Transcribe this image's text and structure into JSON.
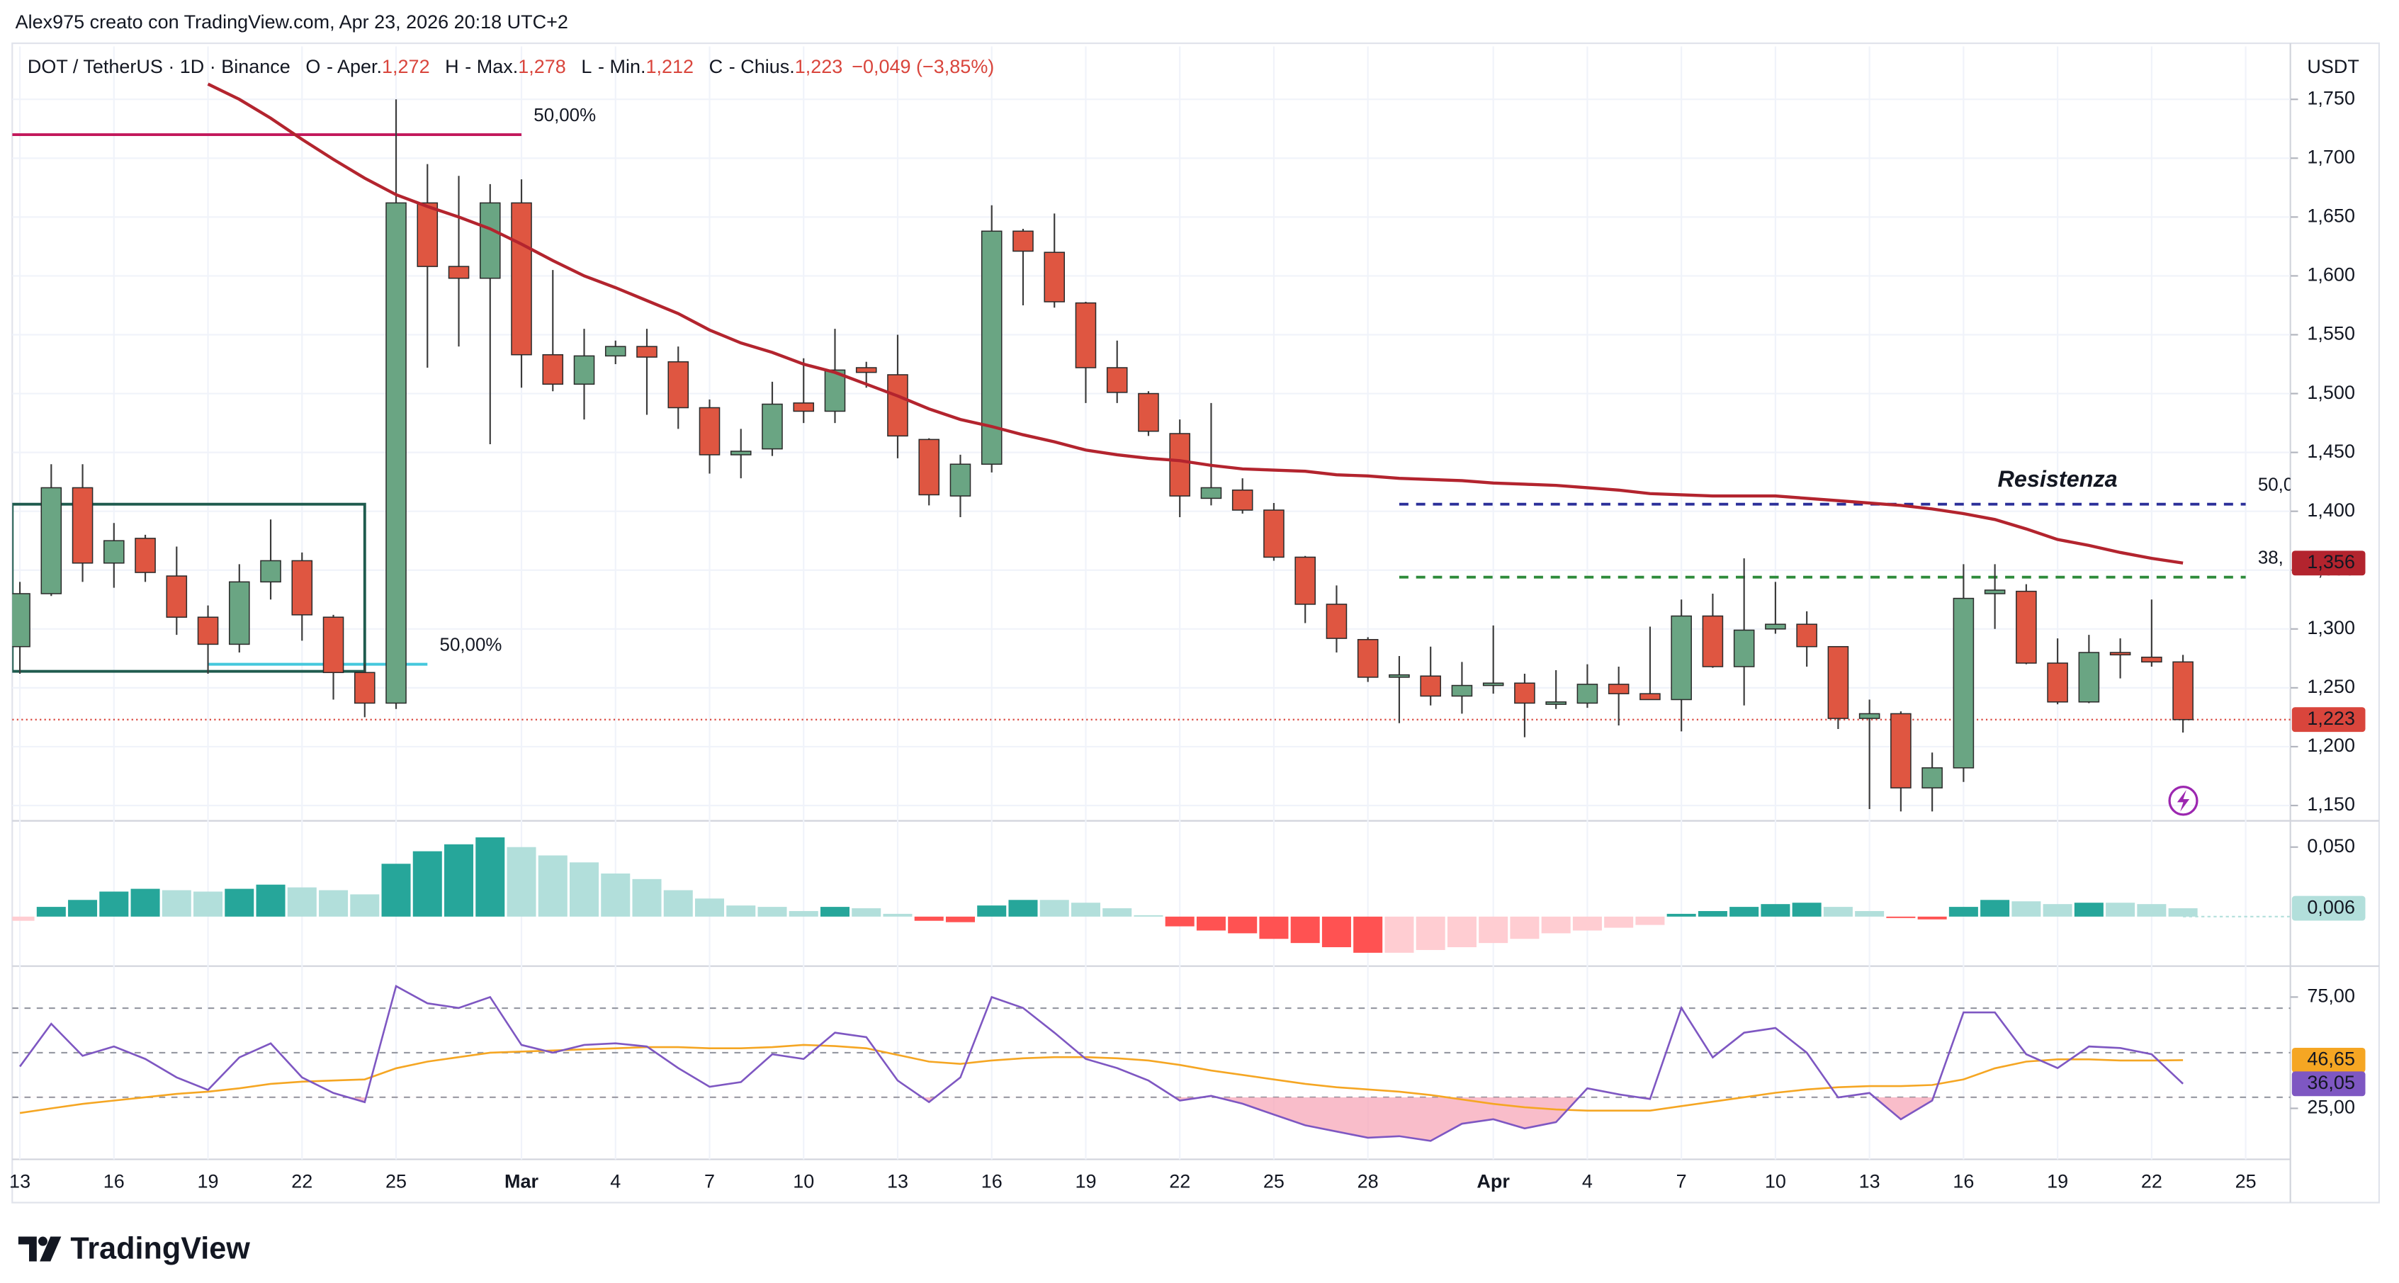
{
  "header": {
    "attribution": "Alex975 creato con TradingView.com, Apr 23, 2026 20:18 UTC+2",
    "brand": "TradingView"
  },
  "chart_data": [
    {
      "type": "candlestick",
      "title": "DOT / TetherUS · 1D · Binance",
      "ohlc_legend": [
        {
          "key": "O",
          "label": "- Aper.",
          "value": "1,272"
        },
        {
          "key": "H",
          "label": "- Max.",
          "value": "1,278"
        },
        {
          "key": "L",
          "label": "- Min.",
          "value": "1,212"
        },
        {
          "key": "C",
          "label": "- Chius.",
          "value": "1,223"
        }
      ],
      "change": "−0,049 (−3,85%)",
      "unit": "USDT",
      "categories": [
        "13",
        null,
        null,
        "16",
        null,
        null,
        "19",
        null,
        null,
        "22",
        null,
        null,
        "25",
        null,
        null,
        null,
        "Mar",
        null,
        null,
        "4",
        null,
        null,
        "7",
        null,
        null,
        "10",
        null,
        null,
        "13",
        null,
        null,
        "16",
        null,
        null,
        "19",
        null,
        null,
        "22",
        null,
        null,
        "25",
        null,
        null,
        "28",
        null,
        null,
        null,
        "Apr",
        null,
        null,
        "4",
        null,
        null,
        "7",
        null,
        null,
        "10",
        null,
        null,
        "13",
        null,
        null,
        "16",
        null,
        null,
        "19",
        null,
        null,
        "22",
        null,
        null,
        "25"
      ],
      "open": [
        1.285,
        1.33,
        1.42,
        1.356,
        1.377,
        1.345,
        1.31,
        1.287,
        1.34,
        1.358,
        1.31,
        1.263,
        1.237,
        1.662,
        1.608,
        1.598,
        1.662,
        1.533,
        1.508,
        1.532,
        1.54,
        1.527,
        1.488,
        1.448,
        1.453,
        1.492,
        1.485,
        1.522,
        1.516,
        1.461,
        1.413,
        1.44,
        1.638,
        1.62,
        1.577,
        1.522,
        1.5,
        1.466,
        1.411,
        1.418,
        1.401,
        1.361,
        1.321,
        1.291,
        1.259,
        1.26,
        1.243,
        1.252,
        1.254,
        1.236,
        1.237,
        1.253,
        1.245,
        1.24,
        1.311,
        1.268,
        1.3,
        1.304,
        1.285,
        1.224,
        1.228,
        1.165,
        1.182,
        1.33,
        1.332,
        1.271,
        1.238,
        1.28,
        1.276,
        1.272,
        null,
        null
      ],
      "high": [
        1.34,
        1.44,
        1.44,
        1.39,
        1.38,
        1.37,
        1.32,
        1.355,
        1.393,
        1.365,
        1.312,
        1.27,
        1.75,
        1.695,
        1.685,
        1.678,
        1.682,
        1.605,
        1.555,
        1.545,
        1.555,
        1.54,
        1.495,
        1.47,
        1.51,
        1.53,
        1.555,
        1.527,
        1.55,
        1.462,
        1.448,
        1.66,
        1.64,
        1.653,
        1.578,
        1.545,
        1.502,
        1.478,
        1.492,
        1.428,
        1.407,
        1.362,
        1.337,
        1.293,
        1.277,
        1.285,
        1.272,
        1.303,
        1.262,
        1.265,
        1.27,
        1.268,
        1.302,
        1.325,
        1.33,
        1.36,
        1.34,
        1.315,
        1.285,
        1.24,
        1.23,
        1.195,
        1.355,
        1.355,
        1.338,
        1.292,
        1.295,
        1.292,
        1.325,
        1.278,
        null,
        null
      ],
      "low": [
        1.262,
        1.328,
        1.34,
        1.335,
        1.34,
        1.295,
        1.262,
        1.28,
        1.325,
        1.29,
        1.24,
        1.225,
        1.232,
        1.522,
        1.54,
        1.457,
        1.505,
        1.502,
        1.478,
        1.525,
        1.482,
        1.47,
        1.432,
        1.428,
        1.447,
        1.475,
        1.475,
        1.505,
        1.445,
        1.405,
        1.395,
        1.433,
        1.575,
        1.573,
        1.492,
        1.492,
        1.464,
        1.395,
        1.405,
        1.398,
        1.358,
        1.305,
        1.28,
        1.255,
        1.22,
        1.235,
        1.228,
        1.245,
        1.208,
        1.232,
        1.233,
        1.218,
        1.24,
        1.213,
        1.267,
        1.235,
        1.296,
        1.268,
        1.215,
        1.147,
        1.145,
        1.145,
        1.17,
        1.3,
        1.27,
        1.236,
        1.237,
        1.258,
        1.268,
        1.212,
        null,
        null
      ],
      "close": [
        1.33,
        1.42,
        1.356,
        1.375,
        1.348,
        1.31,
        1.287,
        1.34,
        1.358,
        1.312,
        1.263,
        1.237,
        1.662,
        1.608,
        1.598,
        1.662,
        1.533,
        1.508,
        1.532,
        1.54,
        1.531,
        1.488,
        1.448,
        1.451,
        1.491,
        1.485,
        1.52,
        1.518,
        1.464,
        1.414,
        1.44,
        1.638,
        1.621,
        1.578,
        1.522,
        1.501,
        1.468,
        1.413,
        1.42,
        1.401,
        1.361,
        1.321,
        1.292,
        1.259,
        1.261,
        1.243,
        1.252,
        1.254,
        1.237,
        1.238,
        1.253,
        1.245,
        1.24,
        1.311,
        1.268,
        1.299,
        1.304,
        1.285,
        1.224,
        1.228,
        1.165,
        1.182,
        1.326,
        1.333,
        1.271,
        1.238,
        1.28,
        1.279,
        1.272,
        1.223,
        null,
        null
      ],
      "last_value_label": "1,223",
      "colors": {
        "up": "#6aa583",
        "down": "#df5641",
        "wick": "#3b3b3b",
        "last": "#d9453c"
      },
      "moving_average": {
        "color": "#b3242e",
        "last_value_label": "1,356",
        "values": [
          null,
          null,
          null,
          null,
          null,
          null,
          1.763,
          1.75,
          1.734,
          1.716,
          1.699,
          1.683,
          1.669,
          1.659,
          1.65,
          1.64,
          1.627,
          1.613,
          1.6,
          1.59,
          1.579,
          1.568,
          1.554,
          1.543,
          1.535,
          1.525,
          1.518,
          1.508,
          1.498,
          1.487,
          1.478,
          1.472,
          1.465,
          1.459,
          1.452,
          1.448,
          1.445,
          1.443,
          1.439,
          1.436,
          1.435,
          1.434,
          1.431,
          1.43,
          1.428,
          1.427,
          1.426,
          1.424,
          1.423,
          1.422,
          1.42,
          1.418,
          1.415,
          1.414,
          1.413,
          1.413,
          1.413,
          1.411,
          1.409,
          1.407,
          1.405,
          1.402,
          1.398,
          1.393,
          1.385,
          1.376,
          1.371,
          1.365,
          1.36,
          1.356,
          null,
          null
        ]
      },
      "ylim": [
        1.137,
        1.795
      ],
      "yticks": [
        {
          "value": 1.15,
          "label": "1,150"
        },
        {
          "value": 1.2,
          "label": "1,200"
        },
        {
          "value": 1.25,
          "label": "1,250"
        },
        {
          "value": 1.3,
          "label": "1,300"
        },
        {
          "value": 1.35,
          "label": "1,350"
        },
        {
          "value": 1.4,
          "label": "1,400"
        },
        {
          "value": 1.45,
          "label": "1,450"
        },
        {
          "value": 1.5,
          "label": "1,500"
        },
        {
          "value": 1.55,
          "label": "1,550"
        },
        {
          "value": 1.6,
          "label": "1,600"
        },
        {
          "value": 1.65,
          "label": "1,650"
        },
        {
          "value": 1.7,
          "label": "1,700"
        },
        {
          "value": 1.75,
          "label": "1,750"
        }
      ],
      "grid": true,
      "drawings": [
        {
          "kind": "level",
          "label": "50,00%",
          "color": "#c2185b",
          "value": 1.72,
          "from": 0,
          "to": 16,
          "dashed": false
        },
        {
          "kind": "level",
          "label": "50,00%",
          "color": "#45c8dc",
          "value": 1.27,
          "from": 6,
          "to": 13,
          "dashed": false
        },
        {
          "kind": "rectangle",
          "color": "#1f5b4e",
          "top": 1.406,
          "bottom": 1.264,
          "from": 0,
          "to": 11
        },
        {
          "kind": "level",
          "label": "50,0",
          "color": "#2b2f99",
          "value": 1.406,
          "from": 44,
          "to": 71,
          "dashed": true
        },
        {
          "kind": "level",
          "label": "38,",
          "color": "#2e8b3a",
          "value": 1.344,
          "from": 44,
          "to": 71,
          "dashed": true
        },
        {
          "kind": "text",
          "label": "Resistenza",
          "color": "#a040c0",
          "value": 1.426,
          "at": 65
        }
      ]
    },
    {
      "type": "histogram",
      "values": [
        -0.003,
        0.007,
        0.012,
        0.018,
        0.02,
        0.019,
        0.018,
        0.02,
        0.023,
        0.021,
        0.019,
        0.016,
        0.038,
        0.047,
        0.052,
        0.057,
        0.05,
        0.044,
        0.039,
        0.031,
        0.027,
        0.019,
        0.013,
        0.008,
        0.007,
        0.004,
        0.007,
        0.006,
        0.002,
        -0.003,
        -0.004,
        0.008,
        0.012,
        0.012,
        0.01,
        0.006,
        0.001,
        -0.007,
        -0.01,
        -0.012,
        -0.016,
        -0.019,
        -0.022,
        -0.026,
        -0.026,
        -0.024,
        -0.022,
        -0.019,
        -0.016,
        -0.012,
        -0.01,
        -0.008,
        -0.006,
        0.002,
        0.004,
        0.007,
        0.009,
        0.01,
        0.007,
        0.004,
        -0.001,
        -0.002,
        0.007,
        0.012,
        0.011,
        0.009,
        0.01,
        0.01,
        0.009,
        0.006,
        null,
        null
      ],
      "last_value_label": "0,006",
      "colors": {
        "up_grow": "#26a69a",
        "up_fall": "#b2dfdb",
        "down_grow": "#ff5252",
        "down_fall": "#ffcdd2"
      },
      "ylim": [
        -0.0356,
        0.0689
      ],
      "yticks": [
        {
          "value": 0.05,
          "label": "0,050"
        }
      ]
    },
    {
      "type": "rsi",
      "series": [
        {
          "color": "#7e57c2",
          "last_value_label": "36,05",
          "values": [
            43.8,
            63,
            48.6,
            52.8,
            47.2,
            38.9,
            33.3,
            47.9,
            54.2,
            38.9,
            31.9,
            27.8,
            79.9,
            72.2,
            70.1,
            75,
            53.5,
            50,
            53.5,
            54.2,
            52.8,
            43.1,
            34.7,
            36.8,
            49.3,
            47.2,
            59,
            57,
            37.5,
            27.8,
            38.9,
            75,
            70.1,
            59,
            47.2,
            43.1,
            37.5,
            28.5,
            30.6,
            27.1,
            22.2,
            17.4,
            14.6,
            11.8,
            12.5,
            10.4,
            18.1,
            20.1,
            16,
            18.8,
            34,
            31.3,
            29.2,
            70.1,
            47.9,
            59,
            61.1,
            50,
            29.9,
            31.9,
            20.1,
            28.5,
            68.1,
            68.1,
            49.3,
            43.1,
            52.8,
            52.1,
            49.3,
            36.05,
            null,
            null
          ]
        },
        {
          "color": "#f5a623",
          "last_value_label": "46,65",
          "values": [
            22.9,
            25,
            27,
            28.5,
            30,
            31.5,
            32.5,
            34,
            36,
            37,
            37.5,
            38,
            43,
            46,
            48,
            50,
            50.5,
            51,
            51.5,
            52,
            52.5,
            52.5,
            52,
            52,
            52.5,
            53.5,
            53,
            52,
            49,
            46,
            45,
            46.5,
            47.5,
            48,
            48,
            47.5,
            46.5,
            44.5,
            42,
            40,
            38,
            36,
            34.5,
            33.5,
            32.5,
            31,
            29,
            27,
            25.5,
            24.5,
            24,
            24,
            24,
            26,
            28,
            30,
            32,
            33.5,
            34.5,
            35,
            35,
            35.5,
            38,
            43,
            46,
            47,
            47,
            46.5,
            46.5,
            46.65,
            null,
            null
          ]
        }
      ],
      "bands": [
        70,
        50,
        30
      ],
      "oversold_fill": "#f7a1b4",
      "ylim": [
        2.1,
        88.9
      ],
      "yticks": [
        {
          "value": 75,
          "label": "75,00"
        },
        {
          "value": 25,
          "label": "25,00"
        }
      ]
    }
  ]
}
